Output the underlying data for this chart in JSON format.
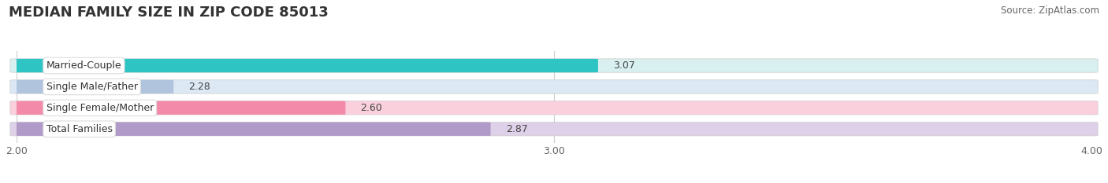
{
  "title": "MEDIAN FAMILY SIZE IN ZIP CODE 85013",
  "source": "Source: ZipAtlas.com",
  "categories": [
    "Married-Couple",
    "Single Male/Father",
    "Single Female/Mother",
    "Total Families"
  ],
  "values": [
    3.07,
    2.28,
    2.6,
    2.87
  ],
  "bar_colors": [
    "#2ec4c4",
    "#b0c4de",
    "#f48aaa",
    "#b09ac8"
  ],
  "bar_bg_colors": [
    "#d8f0f0",
    "#dde8f5",
    "#fad0dc",
    "#ddd0e8"
  ],
  "label_bg_color": "#ffffff",
  "background_color": "#ffffff",
  "plot_bg_color": "#ffffff",
  "xlim": [
    2.0,
    4.0
  ],
  "xticks": [
    2.0,
    3.0,
    4.0
  ],
  "xtick_labels": [
    "2.00",
    "3.00",
    "4.00"
  ],
  "bar_height": 0.62,
  "title_fontsize": 13,
  "label_fontsize": 9,
  "value_fontsize": 9,
  "tick_fontsize": 9,
  "source_fontsize": 8.5
}
